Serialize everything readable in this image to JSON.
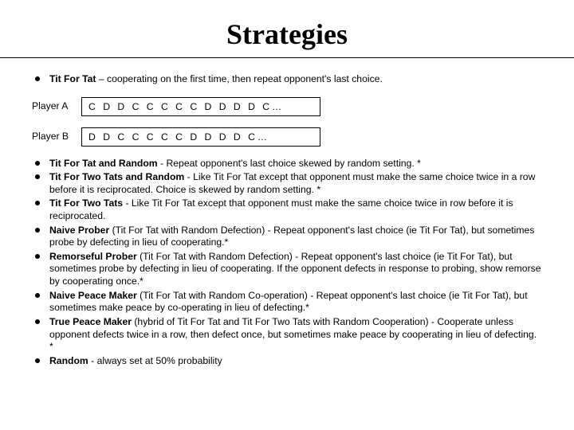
{
  "title": "Strategies",
  "intro": {
    "name": "Tit For Tat",
    "desc": " – cooperating on the first time, then repeat opponent's last choice."
  },
  "players": {
    "a_label": "Player A",
    "a_seq": "C  D  D  C  C  C  C  C  D  D  D  D  C…",
    "b_label": "Player B",
    "b_seq": "D  D  C  C  C  C  C  D  D  D  D  C…"
  },
  "items": [
    {
      "name": "Tit For Tat and Random",
      "desc": " - Repeat opponent's last choice skewed by random setting. *"
    },
    {
      "name": "Tit For Two Tats and Random",
      "desc": " - Like Tit For Tat except that opponent must make the same choice twice in a row before it is reciprocated. Choice is skewed by random setting. *"
    },
    {
      "name": "Tit For Two Tats",
      "desc": " - Like Tit For Tat except that opponent must make the same choice twice in row before it is reciprocated."
    },
    {
      "name": "Naive Prober",
      "paren": " (Tit For Tat with Random Defection)",
      "desc": " - Repeat opponent's last choice (ie Tit For Tat), but sometimes probe by defecting in lieu of cooperating.*"
    },
    {
      "name": "Remorseful Prober",
      "paren": " (Tit For Tat with Random Defection)",
      "desc": " - Repeat opponent's last choice (ie Tit For Tat), but sometimes probe by defecting in lieu of cooperating. If the opponent defects in response to probing, show remorse by cooperating once.*"
    },
    {
      "name": "Naive Peace Maker",
      "paren": " (Tit For Tat with Random Co-operation)",
      "desc": " - Repeat opponent's last choice (ie Tit For Tat), but sometimes make peace by co-operating in lieu of defecting.*"
    },
    {
      "name": "True Peace Maker",
      "paren": " (hybrid of Tit For Tat and Tit For Two Tats with Random Cooperation)",
      "desc": " - Cooperate unless opponent defects twice in a row, then defect once, but sometimes make peace by cooperating in lieu of defecting. *"
    },
    {
      "name": "Random",
      "desc": " - always set at 50% probability"
    }
  ]
}
